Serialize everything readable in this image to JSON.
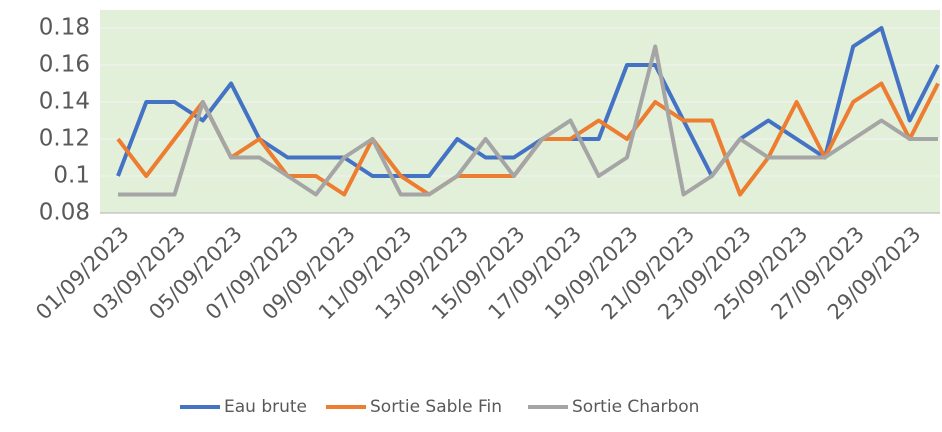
{
  "chart_data": {
    "type": "line",
    "categories": [
      "01/09/2023",
      null,
      "03/09/2023",
      null,
      "05/09/2023",
      null,
      "07/09/2023",
      null,
      "09/09/2023",
      null,
      "11/09/2023",
      null,
      "13/09/2023",
      null,
      "15/09/2023",
      null,
      "17/09/2023",
      null,
      "19/09/2023",
      null,
      "21/09/2023",
      null,
      "23/09/2023",
      null,
      "25/09/2023",
      null,
      "27/09/2023",
      null,
      "29/09/2023",
      null
    ],
    "series": [
      {
        "name": "Eau brute",
        "color": "#4472c4",
        "values": [
          0.1,
          0.14,
          0.14,
          0.13,
          0.15,
          0.12,
          0.11,
          0.11,
          0.11,
          0.1,
          0.1,
          0.1,
          0.12,
          0.11,
          0.11,
          0.12,
          0.12,
          0.12,
          0.16,
          0.16,
          0.13,
          0.1,
          0.12,
          0.13,
          0.12,
          0.11,
          0.17,
          0.18,
          0.13,
          0.16
        ]
      },
      {
        "name": "Sortie Sable Fin",
        "color": "#ed7d31",
        "values": [
          0.12,
          0.1,
          0.12,
          0.14,
          0.11,
          0.12,
          0.1,
          0.1,
          0.09,
          0.12,
          0.1,
          0.09,
          0.1,
          0.1,
          0.1,
          0.12,
          0.12,
          0.13,
          0.12,
          0.14,
          0.13,
          0.13,
          0.09,
          0.11,
          0.14,
          0.11,
          0.14,
          0.15,
          0.12,
          0.15
        ]
      },
      {
        "name": "Sortie Charbon",
        "color": "#a5a5a5",
        "values": [
          0.09,
          0.09,
          0.09,
          0.14,
          0.11,
          0.11,
          0.1,
          0.09,
          0.11,
          0.12,
          0.09,
          0.09,
          0.1,
          0.12,
          0.1,
          0.12,
          0.13,
          0.1,
          0.11,
          0.17,
          0.09,
          0.1,
          0.12,
          0.11,
          0.11,
          0.11,
          0.12,
          0.13,
          0.12,
          0.12
        ]
      }
    ],
    "ylim": [
      0.08,
      0.18
    ],
    "yticks": [
      0.08,
      0.1,
      0.12,
      0.14,
      0.16,
      0.18
    ],
    "grid": true,
    "legend": "bottom"
  }
}
